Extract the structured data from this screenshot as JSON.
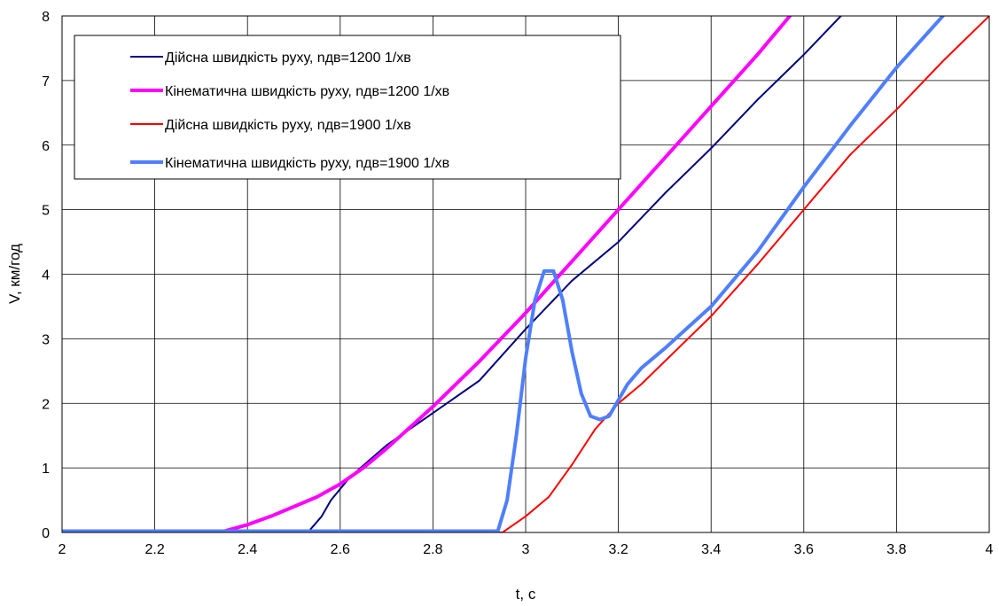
{
  "chart_data": {
    "type": "line",
    "title": "",
    "xlabel": "t, c",
    "ylabel": "V, км/год",
    "xlim": [
      2,
      4
    ],
    "ylim": [
      0,
      8
    ],
    "x_ticks": [
      2,
      2.2,
      2.4,
      2.6,
      2.8,
      3,
      3.2,
      3.4,
      3.6,
      3.8,
      4
    ],
    "y_ticks": [
      0,
      1,
      2,
      3,
      4,
      5,
      6,
      7,
      8
    ],
    "grid": true,
    "legend_position": "top-left",
    "series": [
      {
        "name": "Дійсна швидкість руху, nдв=1200 1/хв",
        "color": "#000080",
        "points": [
          [
            2.0,
            0
          ],
          [
            2.53,
            0
          ],
          [
            2.56,
            0.25
          ],
          [
            2.58,
            0.5
          ],
          [
            2.62,
            0.85
          ],
          [
            2.66,
            1.1
          ],
          [
            2.7,
            1.35
          ],
          [
            2.8,
            1.85
          ],
          [
            2.9,
            2.35
          ],
          [
            3.0,
            3.15
          ],
          [
            3.1,
            3.9
          ],
          [
            3.2,
            4.5
          ],
          [
            3.3,
            5.25
          ],
          [
            3.4,
            5.95
          ],
          [
            3.5,
            6.7
          ],
          [
            3.6,
            7.4
          ],
          [
            3.68,
            8.0
          ]
        ]
      },
      {
        "name": "Кінематична швидкість руху, nдв=1200 1/хв",
        "color": "#ff00ff",
        "points": [
          [
            2.0,
            0.02
          ],
          [
            2.35,
            0.02
          ],
          [
            2.4,
            0.12
          ],
          [
            2.45,
            0.25
          ],
          [
            2.5,
            0.4
          ],
          [
            2.55,
            0.55
          ],
          [
            2.6,
            0.75
          ],
          [
            2.65,
            1.0
          ],
          [
            2.7,
            1.3
          ],
          [
            2.8,
            1.95
          ],
          [
            2.9,
            2.65
          ],
          [
            3.0,
            3.4
          ],
          [
            3.1,
            4.2
          ],
          [
            3.2,
            5.0
          ],
          [
            3.3,
            5.8
          ],
          [
            3.4,
            6.6
          ],
          [
            3.5,
            7.4
          ],
          [
            3.57,
            8.0
          ]
        ]
      },
      {
        "name": "Дійсна швидкість руху, nдв=1900 1/хв",
        "color": "#ff0000",
        "points": [
          [
            2.0,
            0.02
          ],
          [
            2.85,
            0.02
          ],
          [
            2.95,
            0
          ],
          [
            3.0,
            0.25
          ],
          [
            3.05,
            0.55
          ],
          [
            3.1,
            1.05
          ],
          [
            3.15,
            1.6
          ],
          [
            3.2,
            2.0
          ],
          [
            3.25,
            2.3
          ],
          [
            3.3,
            2.65
          ],
          [
            3.4,
            3.35
          ],
          [
            3.5,
            4.15
          ],
          [
            3.6,
            5.0
          ],
          [
            3.7,
            5.85
          ],
          [
            3.8,
            6.55
          ],
          [
            3.9,
            7.3
          ],
          [
            4.0,
            8.0
          ]
        ]
      },
      {
        "name": "Кінематична швидкість руху, nдв=1900 1/хв",
        "color": "#4f7fff",
        "points": [
          [
            2.0,
            0.02
          ],
          [
            2.94,
            0.02
          ],
          [
            2.96,
            0.5
          ],
          [
            2.98,
            1.5
          ],
          [
            3.0,
            2.7
          ],
          [
            3.02,
            3.6
          ],
          [
            3.04,
            4.05
          ],
          [
            3.06,
            4.05
          ],
          [
            3.08,
            3.6
          ],
          [
            3.1,
            2.8
          ],
          [
            3.12,
            2.15
          ],
          [
            3.14,
            1.8
          ],
          [
            3.16,
            1.75
          ],
          [
            3.18,
            1.8
          ],
          [
            3.2,
            2.05
          ],
          [
            3.22,
            2.3
          ],
          [
            3.25,
            2.55
          ],
          [
            3.3,
            2.85
          ],
          [
            3.4,
            3.5
          ],
          [
            3.5,
            4.35
          ],
          [
            3.6,
            5.35
          ],
          [
            3.7,
            6.3
          ],
          [
            3.8,
            7.2
          ],
          [
            3.9,
            8.0
          ]
        ]
      }
    ]
  }
}
